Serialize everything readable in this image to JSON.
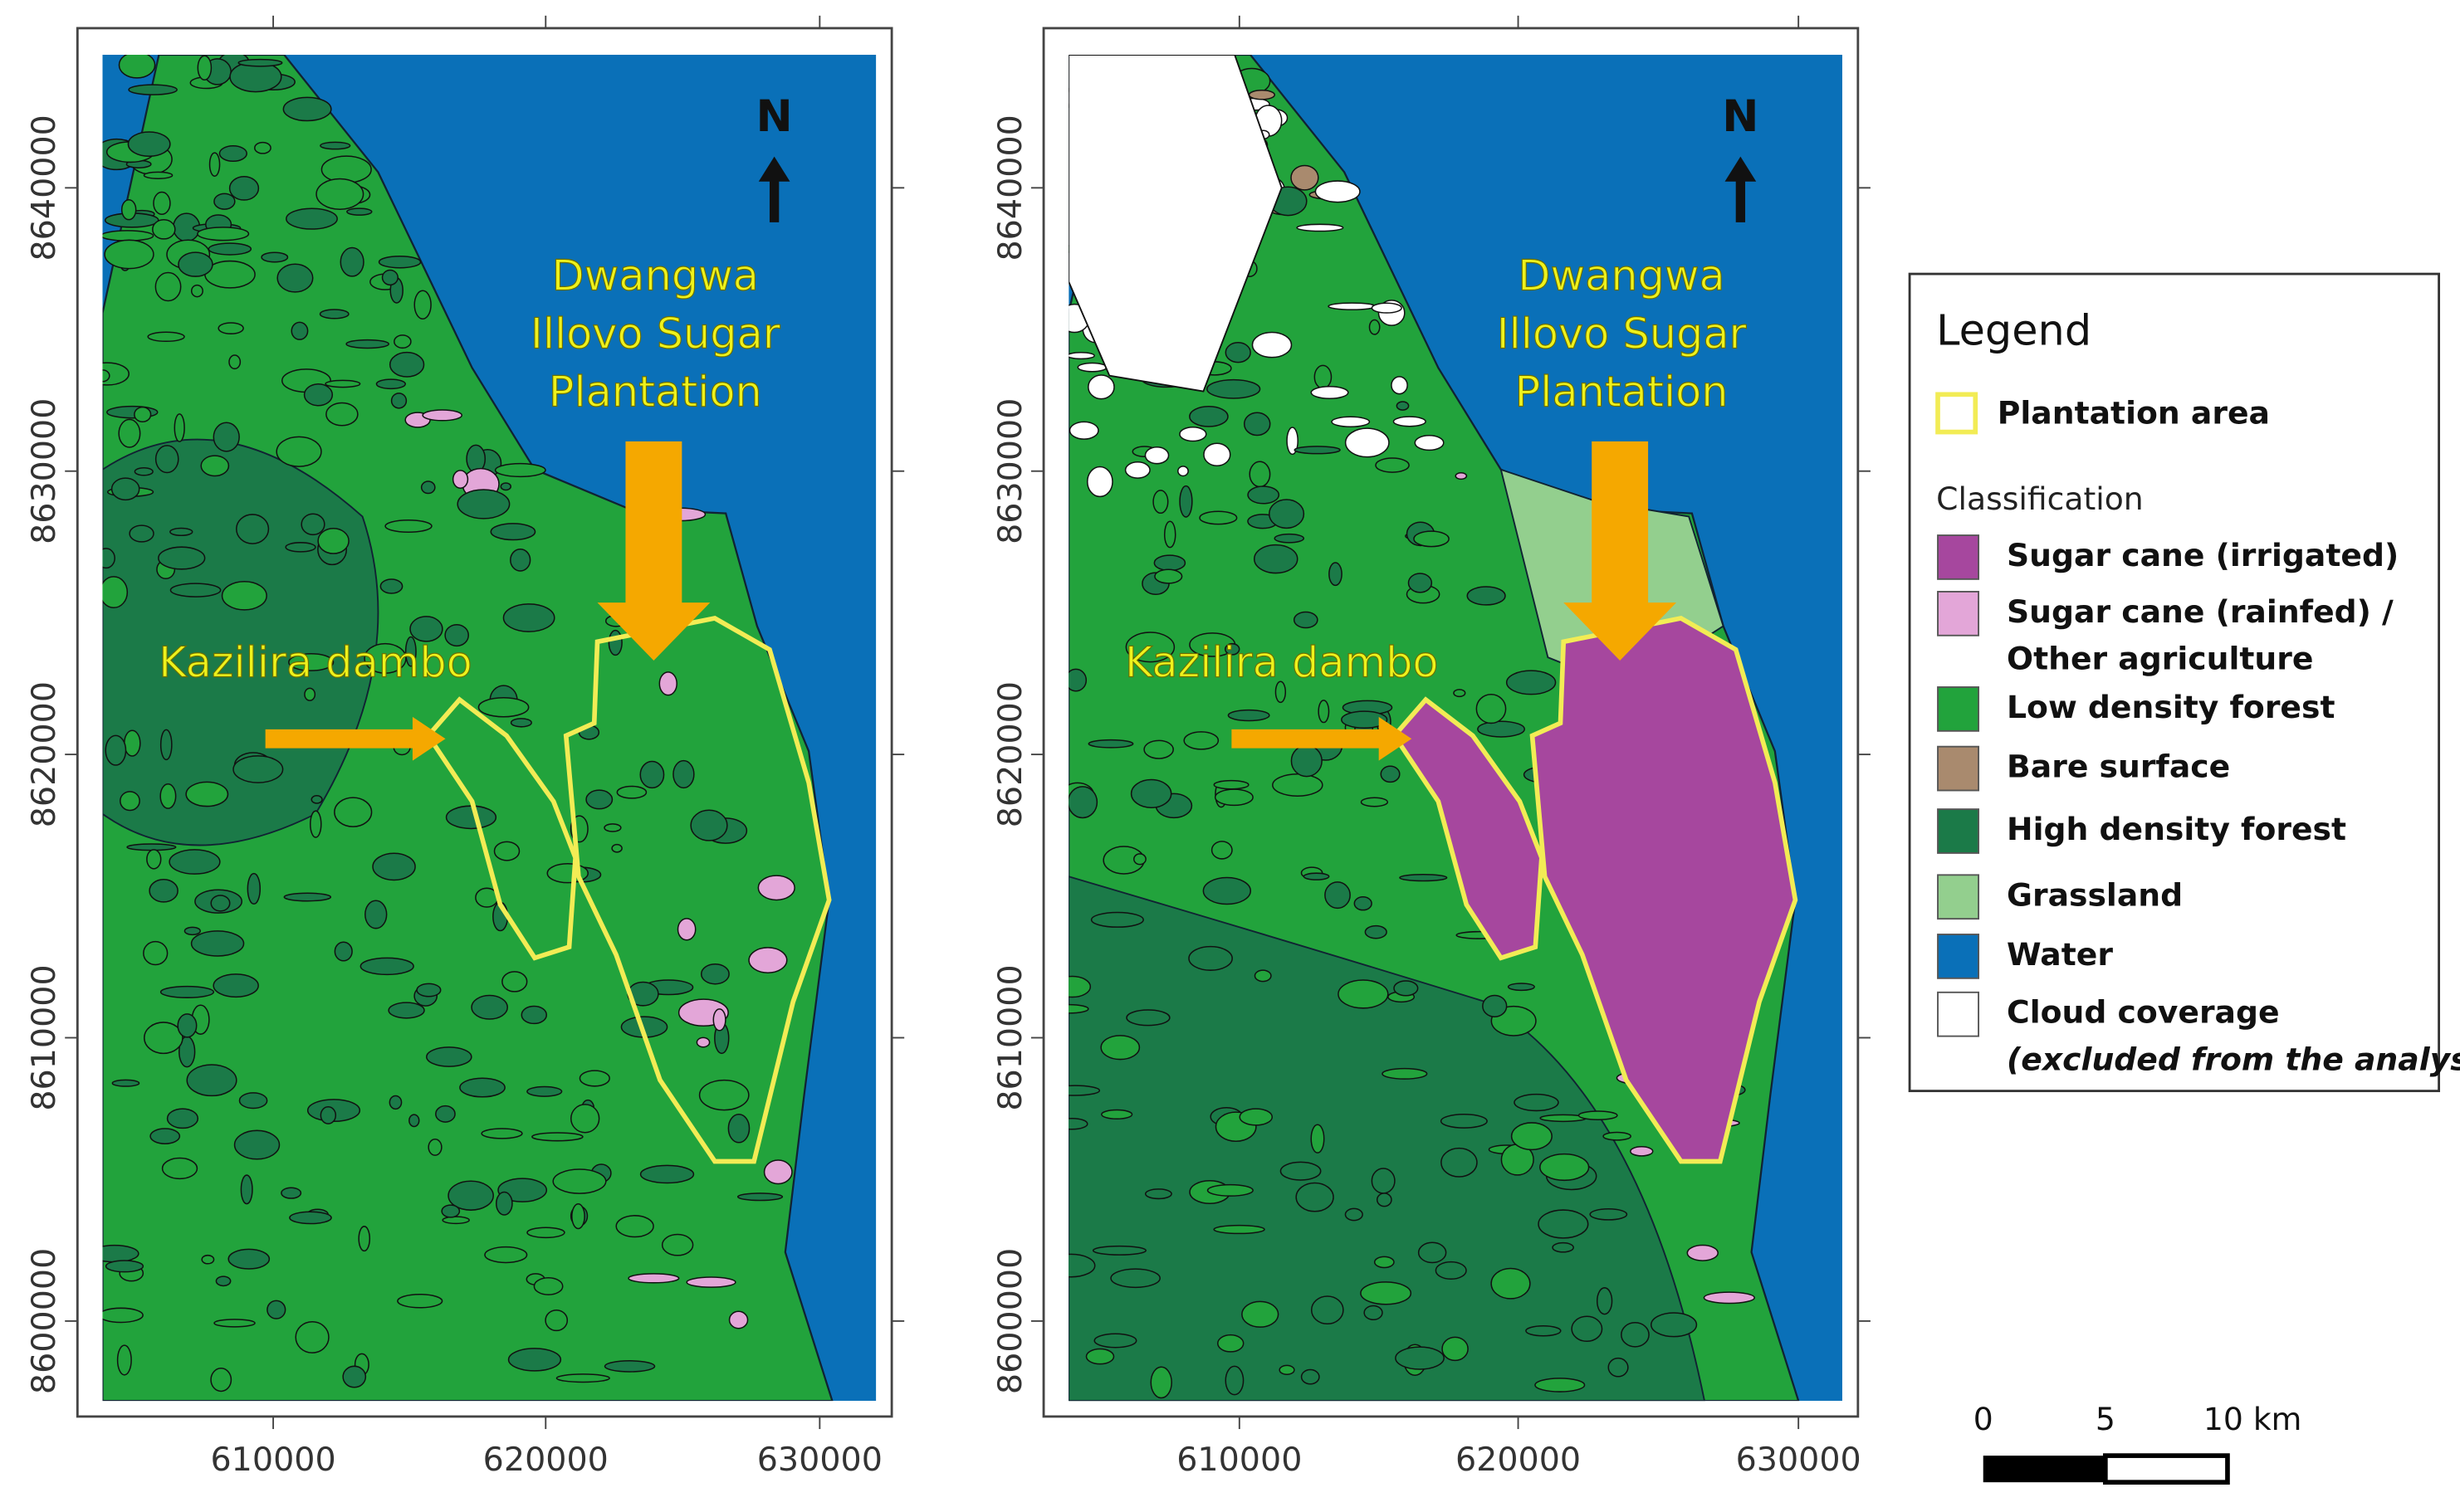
{
  "panels": [
    {
      "north": "N",
      "annotations": {
        "plantation": [
          "Dwangwa",
          "Illovo Sugar",
          "Plantation"
        ],
        "dambo": "Kazilira dambo"
      },
      "xticks": [
        610000,
        620000,
        630000
      ],
      "yticks": [
        8640000,
        8630000,
        8620000,
        8610000,
        8600000
      ]
    },
    {
      "north": "N",
      "annotations": {
        "plantation": [
          "Dwangwa",
          "Illovo Sugar",
          "Plantation"
        ],
        "dambo": "Kazilira dambo"
      },
      "xticks": [
        610000,
        620000,
        630000
      ],
      "yticks": [
        8640000,
        8630000,
        8620000,
        8610000,
        8600000
      ]
    }
  ],
  "legend": {
    "title": "Legend",
    "plantation": "Plantation area",
    "classification_title": "Classification",
    "items": [
      {
        "lines": [
          "Sugar cane (irrigated)"
        ],
        "color": "#a6479e"
      },
      {
        "lines": [
          "Sugar cane (rainfed) /",
          "Other agriculture"
        ],
        "color": "#e3a6d8"
      },
      {
        "lines": [
          "Low density forest"
        ],
        "color": "#22a33c"
      },
      {
        "lines": [
          "Bare surface"
        ],
        "color": "#a98a6e"
      },
      {
        "lines": [
          "High density forest"
        ],
        "color": "#1b7a48"
      },
      {
        "lines": [
          "Grassland"
        ],
        "color": "#93cf8e"
      },
      {
        "lines": [
          "Water"
        ],
        "color": "#0a70b8"
      },
      {
        "lines": [
          "Cloud coverage",
          "(excluded from the analysis)"
        ],
        "color": "#ffffff"
      }
    ]
  },
  "scale_bar": {
    "labels": [
      "0",
      "5",
      "10 km"
    ]
  }
}
